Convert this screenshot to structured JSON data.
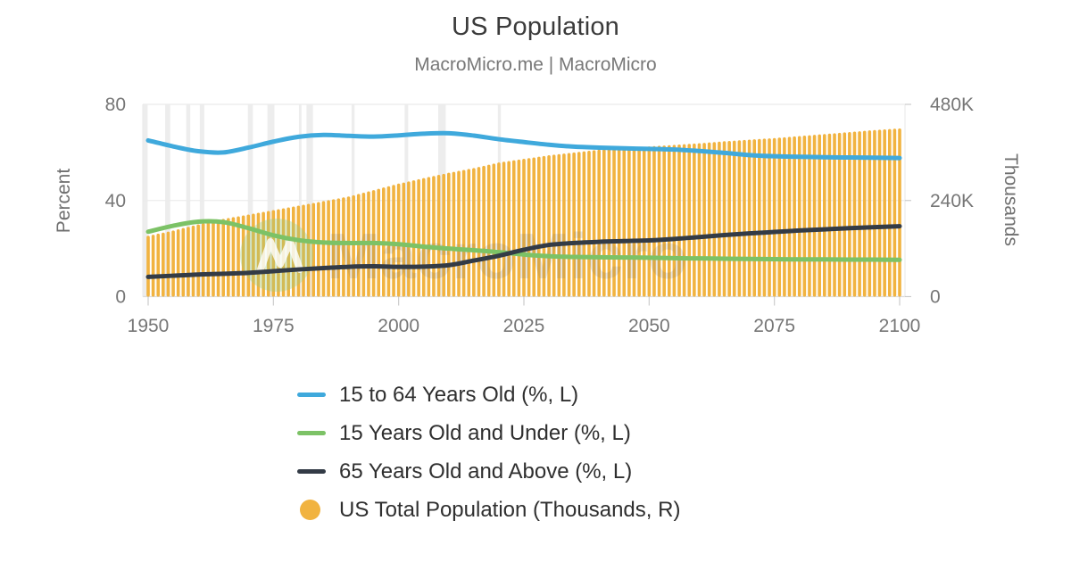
{
  "page": {
    "title": "US Population",
    "subtitle": "MacroMicro.me | MacroMicro",
    "watermark": {
      "logo_letter": "M",
      "text": "MacroMicro"
    }
  },
  "chart_data": {
    "type": "bar+line",
    "title": "US Population",
    "x_years": [
      1950,
      1955,
      1960,
      1965,
      1970,
      1975,
      1980,
      1985,
      1990,
      1995,
      2000,
      2005,
      2010,
      2015,
      2020,
      2025,
      2030,
      2035,
      2040,
      2045,
      2050,
      2055,
      2060,
      2065,
      2070,
      2075,
      2080,
      2085,
      2090,
      2095,
      2100
    ],
    "x_axis": {
      "tick_labels": [
        "1950",
        "1975",
        "2000",
        "2025",
        "2050",
        "2075",
        "2100"
      ],
      "range": [
        1948.9,
        2101.1
      ]
    },
    "left_axis": {
      "label": "Percent",
      "tick_labels": [
        "0",
        "40",
        "80"
      ],
      "range": [
        0,
        80
      ]
    },
    "right_axis": {
      "label": "Thousands",
      "tick_labels": [
        "0",
        "240K",
        "480K"
      ],
      "range": [
        0,
        480000
      ]
    },
    "grid": "horizontal",
    "legend_position": "bottom",
    "series": [
      {
        "name": "15 to 64 Years Old (%, L)",
        "type": "line",
        "axis": "left",
        "color": "#3FA9DC",
        "values": [
          65.0,
          62.5,
          60.5,
          60.0,
          62.0,
          64.5,
          66.5,
          67.3,
          66.9,
          66.6,
          67.1,
          67.8,
          68.0,
          67.0,
          65.5,
          64.3,
          63.2,
          62.4,
          62.0,
          61.7,
          61.5,
          61.2,
          60.6,
          59.8,
          58.9,
          58.4,
          58.2,
          58.0,
          57.9,
          57.8,
          57.7
        ]
      },
      {
        "name": "15 Years Old and Under (%, L)",
        "type": "line",
        "axis": "left",
        "color": "#7CC266",
        "values": [
          27.0,
          29.5,
          31.2,
          31.0,
          28.5,
          25.5,
          23.5,
          22.5,
          22.3,
          22.3,
          21.8,
          20.8,
          20.0,
          19.3,
          18.5,
          17.5,
          16.8,
          16.5,
          16.4,
          16.3,
          16.2,
          16.0,
          15.9,
          15.8,
          15.7,
          15.6,
          15.5,
          15.5,
          15.4,
          15.4,
          15.3
        ]
      },
      {
        "name": "65 Years Old and Above (%, L)",
        "type": "line",
        "axis": "left",
        "color": "#333B46",
        "values": [
          8.2,
          8.7,
          9.2,
          9.5,
          9.9,
          10.6,
          11.3,
          11.9,
          12.4,
          12.6,
          12.4,
          12.5,
          13.1,
          15.0,
          17.0,
          19.5,
          21.5,
          22.3,
          22.8,
          23.1,
          23.4,
          24.0,
          24.8,
          25.6,
          26.3,
          26.9,
          27.5,
          28.0,
          28.5,
          28.9,
          29.3
        ]
      },
      {
        "name": "US Total Population (Thousands, R)",
        "type": "bar",
        "axis": "right",
        "color": "#F1B340",
        "bar_interval_years": 1,
        "values": [
          152000,
          165000,
          180500,
          194000,
          205000,
          216000,
          227200,
          238500,
          250000,
          266000,
          282200,
          296000,
          309300,
          321000,
          335000,
          344000,
          353000,
          360000,
          367000,
          371000,
          375000,
          379000,
          383000,
          388000,
          392000,
          396000,
          401000,
          406000,
          411000,
          416000,
          420000
        ]
      }
    ],
    "recession_bands": [
      [
        1948.8,
        1949.9
      ],
      [
        1953.4,
        1954.4
      ],
      [
        1957.6,
        1958.4
      ],
      [
        1960.3,
        1961.2
      ],
      [
        1969.9,
        1970.9
      ],
      [
        1973.8,
        1975.2
      ],
      [
        1980.1,
        1980.6
      ],
      [
        1981.6,
        1982.9
      ],
      [
        1990.6,
        1991.2
      ],
      [
        2001.2,
        2001.9
      ],
      [
        2007.9,
        2009.4
      ],
      [
        2019.8,
        2020.4
      ]
    ]
  }
}
